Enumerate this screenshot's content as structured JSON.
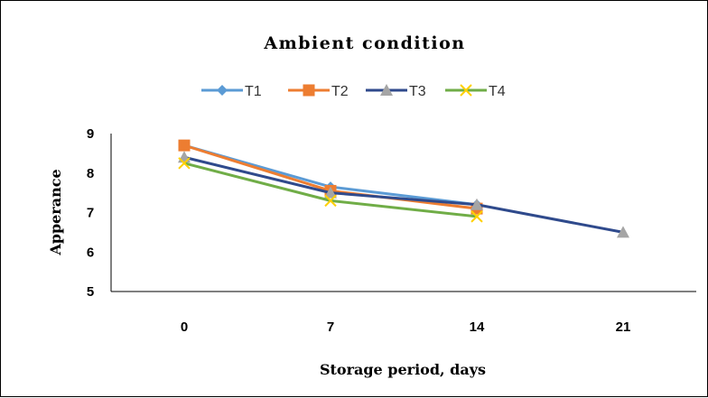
{
  "chart_data": {
    "type": "line",
    "title": "Ambient condition",
    "xlabel": "Storage period, days",
    "ylabel": "Apperance",
    "categories": [
      "0",
      "7",
      "14",
      "21"
    ],
    "ylim": [
      5,
      9
    ],
    "yticks": [
      5,
      6,
      7,
      8,
      9
    ],
    "grid": false,
    "legend_position": "top",
    "series": [
      {
        "name": "T1",
        "values": [
          8.7,
          7.65,
          7.2,
          null
        ],
        "color": "#5B9BD5",
        "marker": "diamond"
      },
      {
        "name": "T2",
        "values": [
          8.7,
          7.55,
          7.1,
          null
        ],
        "color": "#ED7D31",
        "marker": "square"
      },
      {
        "name": "T3",
        "values": [
          8.4,
          7.5,
          7.2,
          6.5
        ],
        "color": "#2F4A8C",
        "marker": "triangle",
        "marker_color": "#A5A5A5"
      },
      {
        "name": "T4",
        "values": [
          8.25,
          7.3,
          6.9,
          null
        ],
        "color": "#70AD47",
        "marker": "x",
        "marker_color": "#FFD000"
      }
    ]
  }
}
